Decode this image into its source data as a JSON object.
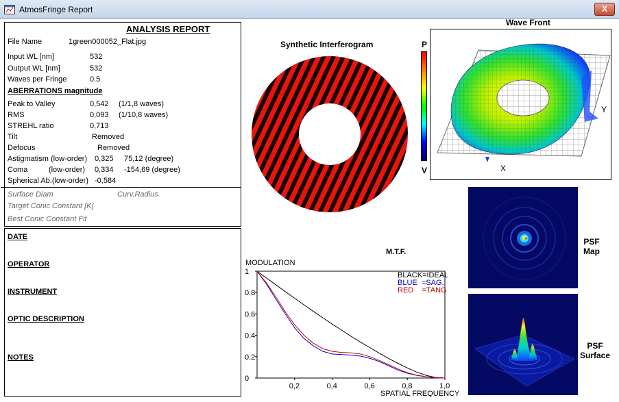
{
  "window": {
    "title": "AtmosFringe  Report",
    "close_label": "X"
  },
  "report": {
    "title": "ANALYSIS  REPORT",
    "file_name_label": "File Name",
    "file_name": "1green000052_Flat.jpg",
    "input_wl_label": "Input  WL [nm]",
    "input_wl": "532",
    "output_wl_label": "Output WL [nm]",
    "output_wl": "532",
    "waves_per_fringe_label": "Waves per Fringe",
    "waves_per_fringe": "0.5",
    "aberrations_header": "ABERRATIONS magnitude",
    "pv_label": "Peak to Valley",
    "pv_value": "0,542",
    "pv_waves": "(1/1,8 waves)",
    "rms_label": "RMS",
    "rms_value": "0,093",
    "rms_waves": "(1/10,8 waves)",
    "strehl_label": "STREHL ratio",
    "strehl_value": "0,713",
    "tilt_label": "Tilt",
    "tilt_value": "Removed",
    "defocus_label": "Defocus",
    "defocus_value": "Removed",
    "astig_label": "Astigmatism  (low-order)",
    "astig_value": "0,325",
    "astig_angle": "75,12  (degree)",
    "coma_label": "Coma          (low-order)",
    "coma_value": "0,334",
    "coma_angle": "-154,69  (degree)",
    "spherical_label": "Spherical Ab.(low-order)",
    "spherical_value": "-0,584",
    "surface_diam": "Surface Diam",
    "curv_radius": "Curv.Radius",
    "target_conic": "Target Conic Constant [K]",
    "best_conic": "Best Conic Constant Fit"
  },
  "meta": {
    "date": "DATE",
    "operator": "OPERATOR",
    "instrument": "INSTRUMENT",
    "optic_description": "OPTIC DESCRIPTION",
    "notes": "NOTES"
  },
  "interferogram": {
    "title": "Synthetic Interferogram",
    "fringe_color": "#e8150e",
    "dark_color": "#150303"
  },
  "wavefront": {
    "title": "Wave Front",
    "scale_top": "P",
    "scale_bottom": "V",
    "axis_x": "X",
    "axis_y": "Y"
  },
  "psf": {
    "map_label": "PSF Map",
    "surface_label": "PSF Surface"
  },
  "chart_data": {
    "type": "line",
    "title": "M.T.F.",
    "ylabel": "MODULATION",
    "xlabel": "SPATIAL FREQUENCY",
    "xlim": [
      0,
      1
    ],
    "ylim": [
      0,
      1
    ],
    "x_ticks": [
      "0,2",
      "0,4",
      "0,6",
      "0,8",
      "1,0"
    ],
    "y_ticks": [
      "0",
      "0.2",
      "0.4",
      "0.6",
      "0.8",
      "1"
    ],
    "legend": [
      "BLACK=IDEAL",
      "BLUE  =SAG.",
      "RED    =TANG"
    ],
    "legend_colors": [
      "#000000",
      "#0000c8",
      "#c80000"
    ],
    "x": [
      0,
      0.05,
      0.1,
      0.15,
      0.2,
      0.25,
      0.3,
      0.35,
      0.4,
      0.45,
      0.5,
      0.55,
      0.6,
      0.65,
      0.7,
      0.75,
      0.8,
      0.85,
      0.9,
      0.95,
      1.0
    ],
    "series": [
      {
        "name": "IDEAL",
        "color": "#000000",
        "values": [
          1.0,
          0.936,
          0.873,
          0.809,
          0.747,
          0.685,
          0.624,
          0.564,
          0.505,
          0.449,
          0.391,
          0.337,
          0.285,
          0.233,
          0.184,
          0.138,
          0.095,
          0.056,
          0.025,
          0.006,
          0.0
        ]
      },
      {
        "name": "SAG.",
        "color": "#0000c8",
        "values": [
          1.0,
          0.88,
          0.74,
          0.6,
          0.47,
          0.37,
          0.3,
          0.25,
          0.225,
          0.22,
          0.215,
          0.205,
          0.185,
          0.155,
          0.115,
          0.075,
          0.045,
          0.025,
          0.012,
          0.004,
          0.0
        ]
      },
      {
        "name": "TANG",
        "color": "#c80000",
        "values": [
          1.0,
          0.89,
          0.76,
          0.62,
          0.5,
          0.4,
          0.325,
          0.275,
          0.25,
          0.24,
          0.235,
          0.225,
          0.2,
          0.165,
          0.125,
          0.085,
          0.05,
          0.027,
          0.012,
          0.004,
          0.0
        ]
      }
    ]
  }
}
